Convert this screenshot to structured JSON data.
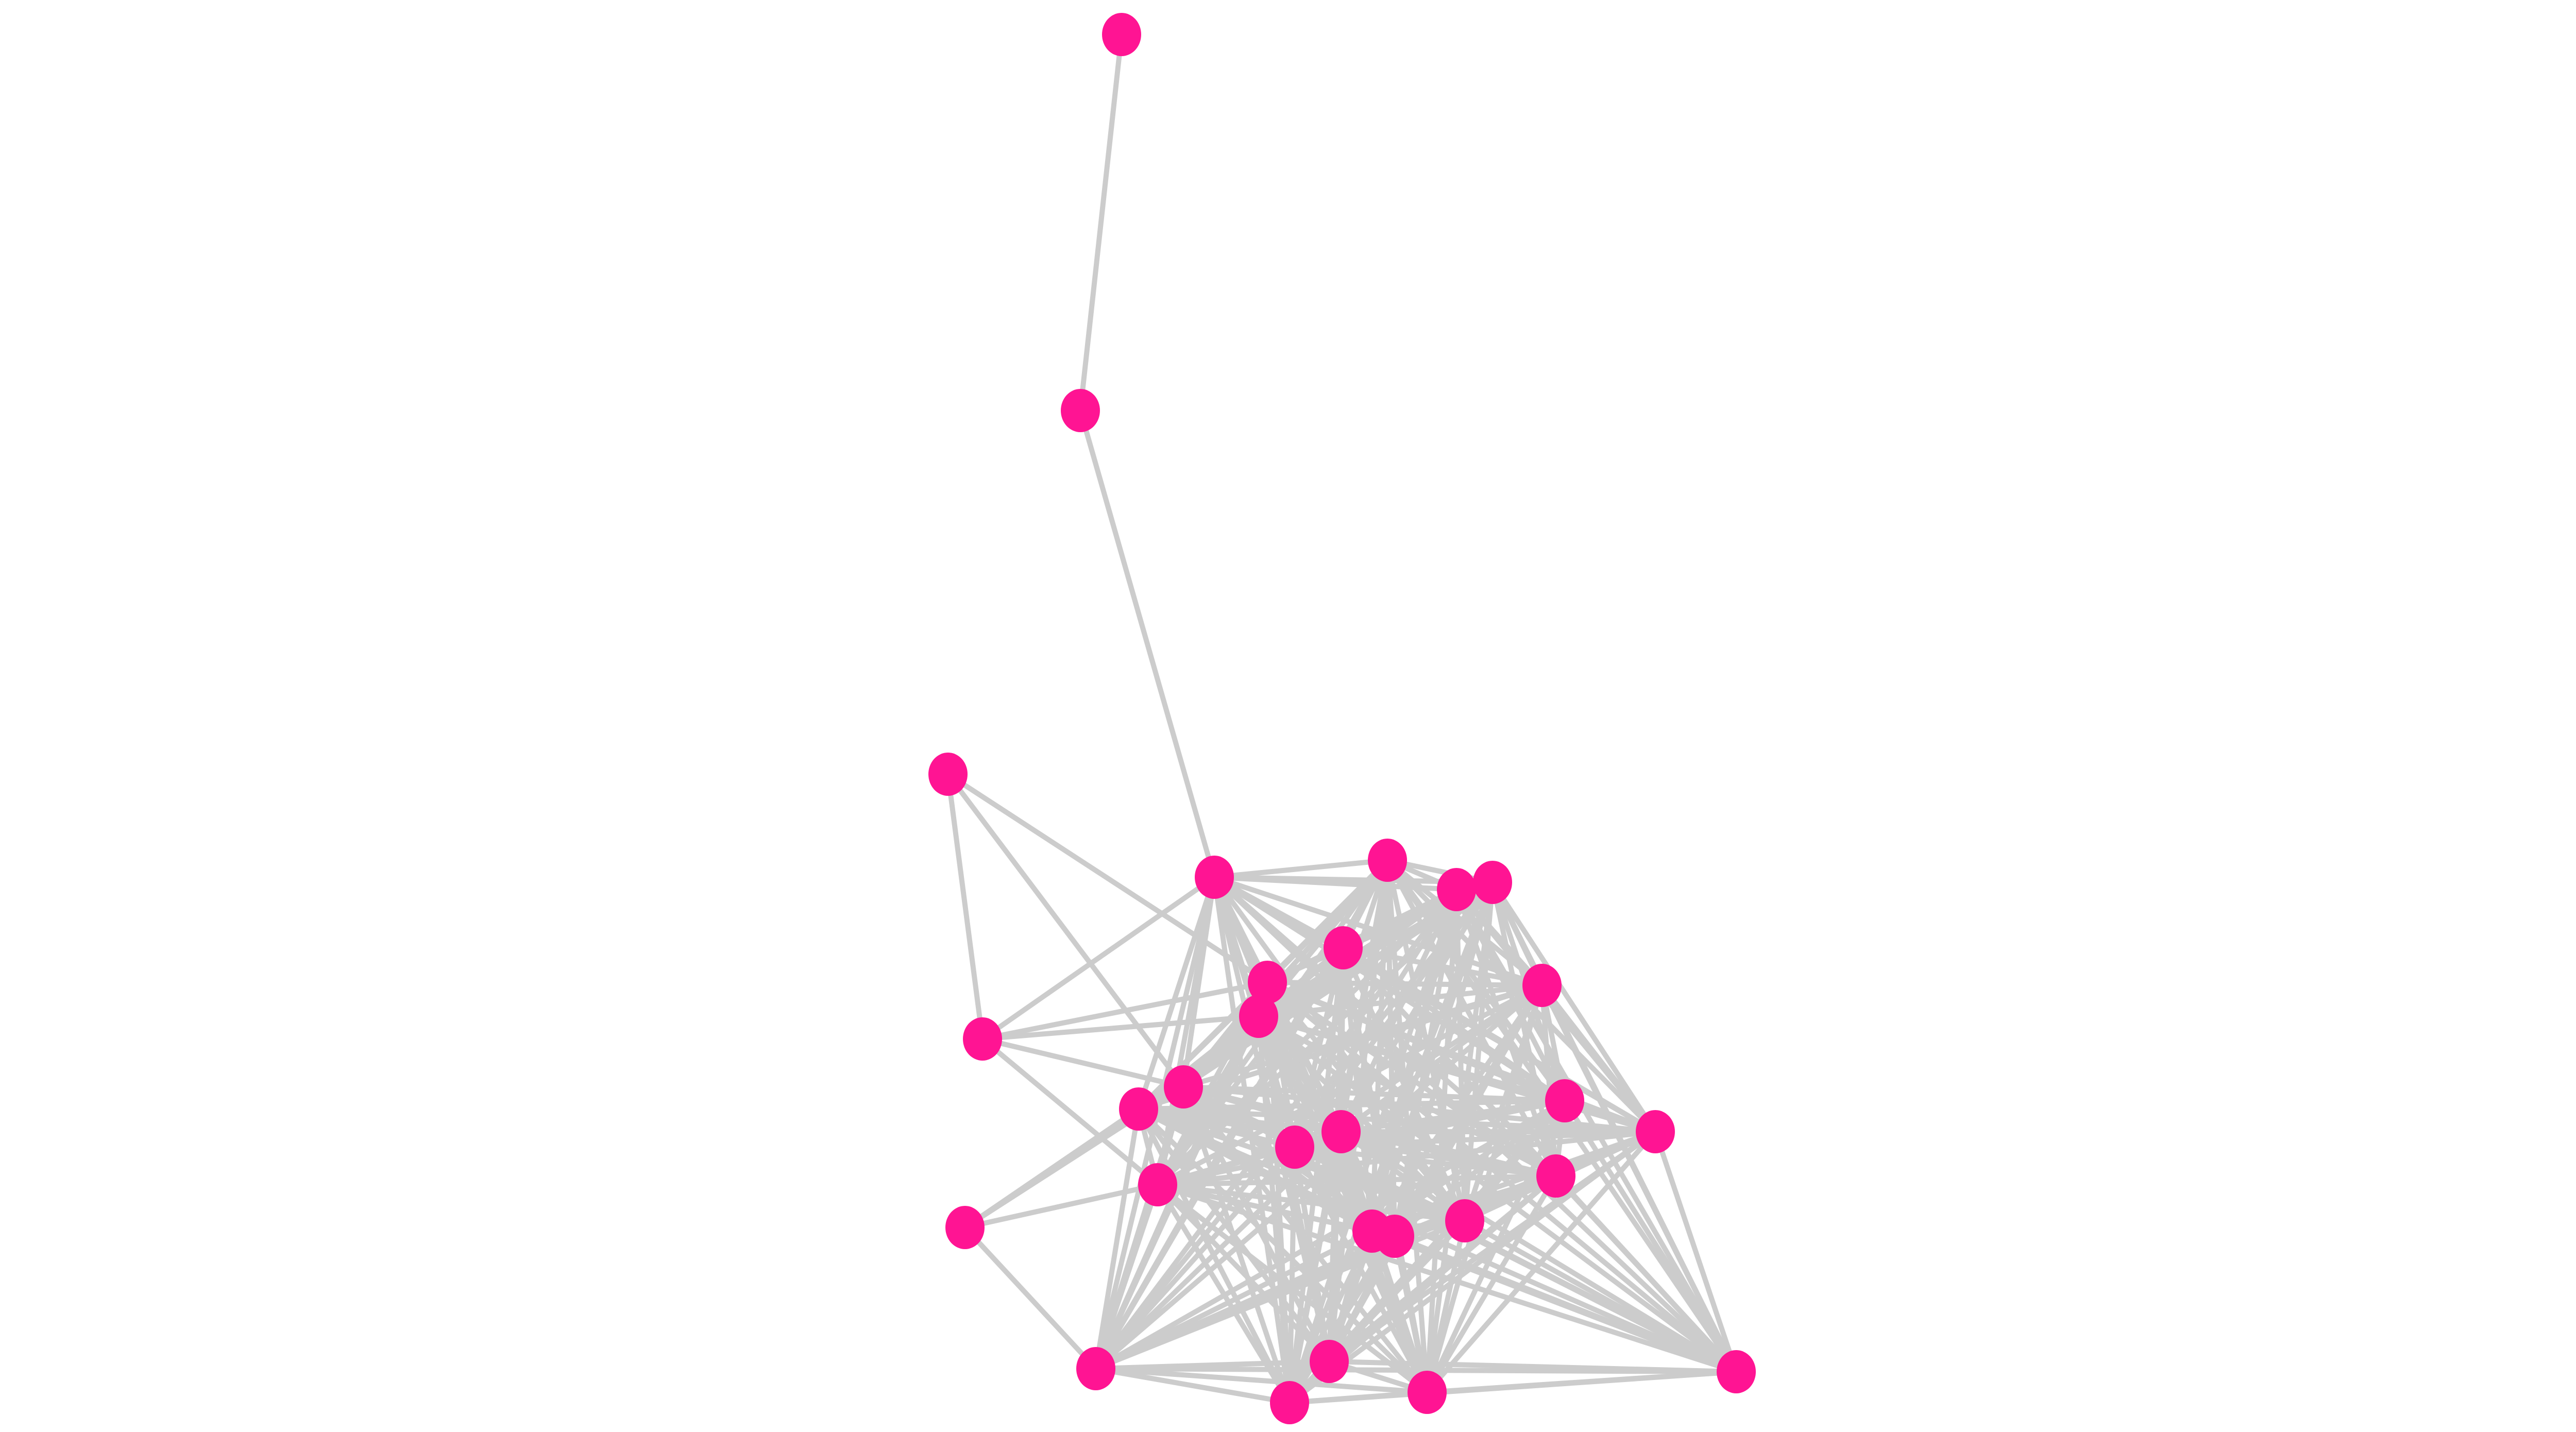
{
  "graph": {
    "node_color": "#FF1493",
    "edge_color": "#CCCCCC",
    "background": "#FFFFFF",
    "nodes": [
      1,
      2,
      3,
      4,
      5,
      6,
      7,
      8,
      9,
      10,
      11,
      12,
      13,
      14,
      15,
      16,
      17,
      18,
      19,
      20,
      21,
      22,
      23,
      24,
      25,
      26,
      27,
      28,
      29
    ],
    "adjacency": {
      "1": [
        2
      ],
      "2": [
        4
      ],
      "3": [
        12,
        9,
        13
      ],
      "12": [
        4,
        9,
        10,
        13,
        19
      ],
      "21": [
        13,
        14,
        19,
        25
      ],
      "4": [
        5,
        6,
        7,
        8,
        9,
        10,
        11,
        13,
        14,
        15,
        16,
        17,
        18,
        19,
        20,
        22,
        23,
        24,
        25,
        26,
        27,
        28,
        29
      ],
      "5": [
        6,
        7,
        8,
        9,
        10,
        11,
        13,
        14,
        15,
        16,
        17,
        18,
        19,
        20,
        22,
        23,
        24,
        25,
        26,
        27,
        28,
        29
      ],
      "6": [
        7,
        8,
        9,
        10,
        11,
        13,
        14,
        15,
        16,
        17,
        18,
        19,
        20,
        22,
        23,
        24,
        25,
        26,
        27,
        28,
        29
      ],
      "7": [
        8,
        9,
        10,
        11,
        13,
        14,
        15,
        16,
        17,
        18,
        19,
        20,
        22,
        23,
        24,
        25,
        26,
        27,
        28,
        29
      ],
      "8": [
        9,
        10,
        11,
        13,
        14,
        15,
        16,
        17,
        18,
        19,
        20,
        22,
        23,
        24,
        25,
        26,
        27,
        28,
        29
      ],
      "9": [
        10,
        11,
        13,
        14,
        15,
        16,
        17,
        18,
        19,
        20,
        22,
        23,
        24,
        25,
        26,
        27,
        28,
        29
      ],
      "10": [
        11,
        13,
        14,
        15,
        16,
        17,
        18,
        19,
        20,
        22,
        23,
        24,
        25,
        26,
        27,
        28,
        29
      ],
      "11": [
        13,
        14,
        15,
        16,
        17,
        18,
        19,
        20,
        22,
        23,
        24,
        25,
        26,
        27,
        28,
        29
      ],
      "13": [
        14,
        15,
        16,
        17,
        18,
        19,
        20,
        22,
        23,
        24,
        25,
        26,
        27,
        28,
        29
      ],
      "14": [
        15,
        16,
        17,
        18,
        19,
        20,
        22,
        23,
        24,
        25,
        26,
        27,
        28,
        29
      ],
      "15": [
        16,
        17,
        18,
        19,
        20,
        22,
        23,
        24,
        25,
        26,
        27,
        28,
        29
      ],
      "16": [
        17,
        18,
        19,
        20,
        22,
        23,
        24,
        25,
        26,
        27,
        28,
        29
      ],
      "17": [
        18,
        19,
        20,
        22,
        23,
        24,
        25,
        26,
        27,
        28,
        29
      ],
      "18": [
        19,
        20,
        22,
        23,
        24,
        25,
        26,
        27,
        28,
        29
      ],
      "19": [
        20,
        22,
        23,
        24,
        25,
        26,
        27,
        28,
        29
      ],
      "20": [
        22,
        23,
        24,
        25,
        26,
        27,
        28,
        29
      ],
      "22": [
        23,
        24,
        25,
        26,
        27,
        28,
        29
      ],
      "23": [
        24,
        25,
        26,
        27,
        28,
        29
      ],
      "24": [
        25,
        26,
        27,
        28,
        29
      ],
      "25": [
        26,
        27,
        28,
        29
      ],
      "26": [
        27,
        28,
        29
      ],
      "27": [
        28,
        29
      ],
      "28": [
        29
      ]
    }
  }
}
